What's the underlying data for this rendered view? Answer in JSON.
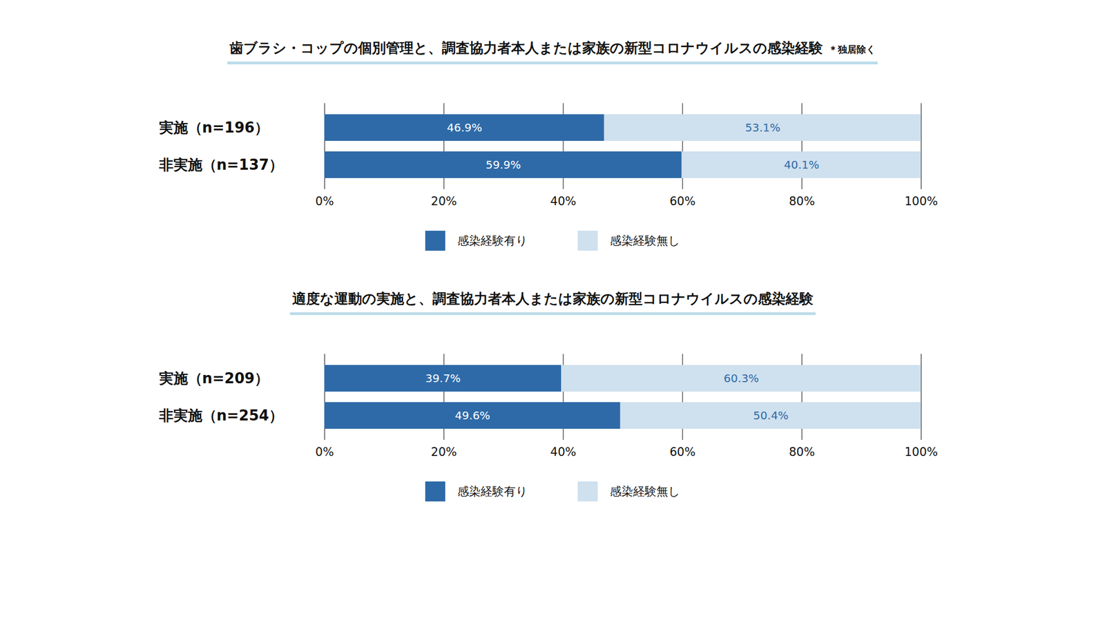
{
  "chart_data": [
    {
      "type": "bar",
      "orientation": "horizontal",
      "stacked": true,
      "data_labels": true,
      "grid": true,
      "legend": "bottom",
      "title": "歯ブラシ・コップの個別管理と、調査協力者本人または家族の新型コロナウイルスの感染経験",
      "subtitle": "＊独居除く",
      "categories": [
        "実施（n=196）",
        "非実施（n=137）"
      ],
      "series": [
        {
          "name": "感染経験有り",
          "color": "#2e6aa8",
          "values": [
            46.9,
            59.9
          ],
          "value_labels": [
            "46.9%",
            "59.9%"
          ]
        },
        {
          "name": "感染経験無し",
          "color": "#cfe0ee",
          "values": [
            53.1,
            40.1
          ],
          "value_labels": [
            "53.1%",
            "40.1%"
          ]
        }
      ],
      "xlim": [
        0,
        100
      ],
      "xticks": [
        {
          "value": 0,
          "label": "0%"
        },
        {
          "value": 20,
          "label": "20%"
        },
        {
          "value": 40,
          "label": "40%"
        },
        {
          "value": 60,
          "label": "60%"
        },
        {
          "value": 80,
          "label": "80%"
        },
        {
          "value": 100,
          "label": "100%"
        }
      ]
    },
    {
      "type": "bar",
      "orientation": "horizontal",
      "stacked": true,
      "data_labels": true,
      "grid": true,
      "legend": "bottom",
      "title": "適度な運動の実施と、調査協力者本人または家族の新型コロナウイルスの感染経験",
      "categories": [
        "実施（n=209）",
        "非実施（n=254）"
      ],
      "series": [
        {
          "name": "感染経験有り",
          "color": "#2e6aa8",
          "values": [
            39.7,
            49.6
          ],
          "value_labels": [
            "39.7%",
            "49.6%"
          ]
        },
        {
          "name": "感染経験無し",
          "color": "#cfe0ee",
          "values": [
            60.3,
            50.4
          ],
          "value_labels": [
            "60.3%",
            "50.4%"
          ]
        }
      ],
      "xlim": [
        0,
        100
      ],
      "xticks": [
        {
          "value": 0,
          "label": "0%"
        },
        {
          "value": 20,
          "label": "20%"
        },
        {
          "value": 40,
          "label": "40%"
        },
        {
          "value": 60,
          "label": "60%"
        },
        {
          "value": 80,
          "label": "80%"
        },
        {
          "value": 100,
          "label": "100%"
        }
      ]
    }
  ]
}
